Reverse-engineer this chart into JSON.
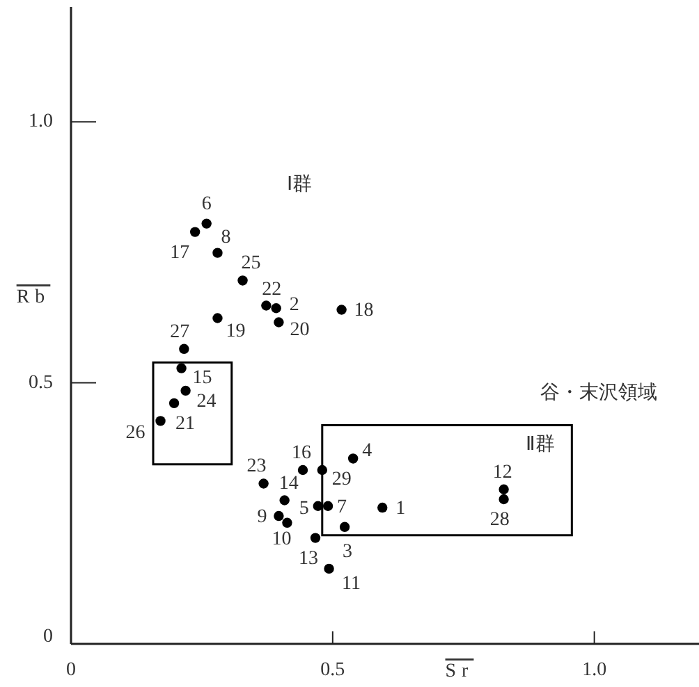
{
  "chart_data": {
    "type": "scatter",
    "xlabel": "Sr",
    "ylabel": "Rb",
    "xlim": [
      0,
      1.2
    ],
    "ylim": [
      0,
      1.22
    ],
    "xticks": [
      0,
      {
        "value": 0.5,
        "label": "0.5"
      },
      {
        "value": 1,
        "label": "1.0"
      }
    ],
    "yticks": [
      0,
      {
        "value": 0.5,
        "label": "0.5"
      },
      {
        "value": 1,
        "label": "1.0"
      }
    ],
    "grid": false,
    "marker": "circle",
    "series": [
      {
        "color": "#000000",
        "x": [
          0.595,
          0.392,
          0.523,
          0.539,
          0.472,
          0.259,
          0.491,
          0.28,
          0.397,
          0.413,
          0.493,
          0.827,
          0.467,
          0.408,
          0.211,
          0.443,
          0.237,
          0.517,
          0.28,
          0.397,
          0.197,
          0.373,
          0.368,
          0.219,
          0.328,
          0.171,
          0.216,
          0.827,
          0.48
        ],
        "values": [
          0.261,
          0.643,
          0.224,
          0.355,
          0.264,
          0.805,
          0.264,
          0.749,
          0.245,
          0.232,
          0.144,
          0.296,
          0.203,
          0.275,
          0.528,
          0.333,
          0.789,
          0.64,
          0.624,
          0.616,
          0.461,
          0.648,
          0.307,
          0.485,
          0.696,
          0.427,
          0.565,
          0.277,
          0.333
        ]
      }
    ],
    "annotations": [
      {
        "text": "1",
        "x": 0.595,
        "y": 0.261
      },
      {
        "text": "2",
        "x": 0.392,
        "y": 0.643
      },
      {
        "text": "3",
        "x": 0.523,
        "y": 0.224
      },
      {
        "text": "4",
        "x": 0.539,
        "y": 0.355
      },
      {
        "text": "5",
        "x": 0.472,
        "y": 0.264
      },
      {
        "text": "6",
        "x": 0.259,
        "y": 0.805
      },
      {
        "text": "7",
        "x": 0.491,
        "y": 0.264
      },
      {
        "text": "8",
        "x": 0.28,
        "y": 0.749
      },
      {
        "text": "9",
        "x": 0.397,
        "y": 0.245
      },
      {
        "text": "10",
        "x": 0.413,
        "y": 0.232
      },
      {
        "text": "11",
        "x": 0.493,
        "y": 0.144
      },
      {
        "text": "12",
        "x": 0.827,
        "y": 0.296
      },
      {
        "text": "13",
        "x": 0.467,
        "y": 0.203
      },
      {
        "text": "14",
        "x": 0.408,
        "y": 0.275
      },
      {
        "text": "15",
        "x": 0.211,
        "y": 0.528
      },
      {
        "text": "16",
        "x": 0.443,
        "y": 0.333
      },
      {
        "text": "17",
        "x": 0.237,
        "y": 0.789
      },
      {
        "text": "18",
        "x": 0.517,
        "y": 0.64
      },
      {
        "text": "19",
        "x": 0.28,
        "y": 0.624
      },
      {
        "text": "20",
        "x": 0.397,
        "y": 0.616
      },
      {
        "text": "21",
        "x": 0.197,
        "y": 0.461
      },
      {
        "text": "22",
        "x": 0.373,
        "y": 0.648
      },
      {
        "text": "23",
        "x": 0.368,
        "y": 0.307
      },
      {
        "text": "24",
        "x": 0.219,
        "y": 0.485
      },
      {
        "text": "25",
        "x": 0.328,
        "y": 0.696
      },
      {
        "text": "26",
        "x": 0.171,
        "y": 0.427
      },
      {
        "text": "27",
        "x": 0.216,
        "y": 0.565
      },
      {
        "text": "28",
        "x": 0.827,
        "y": 0.277
      },
      {
        "text": "29",
        "x": 0.48,
        "y": 0.333
      },
      "Ⅰ群",
      "Ⅱ群",
      "谷・末沢領域"
    ]
  }
}
